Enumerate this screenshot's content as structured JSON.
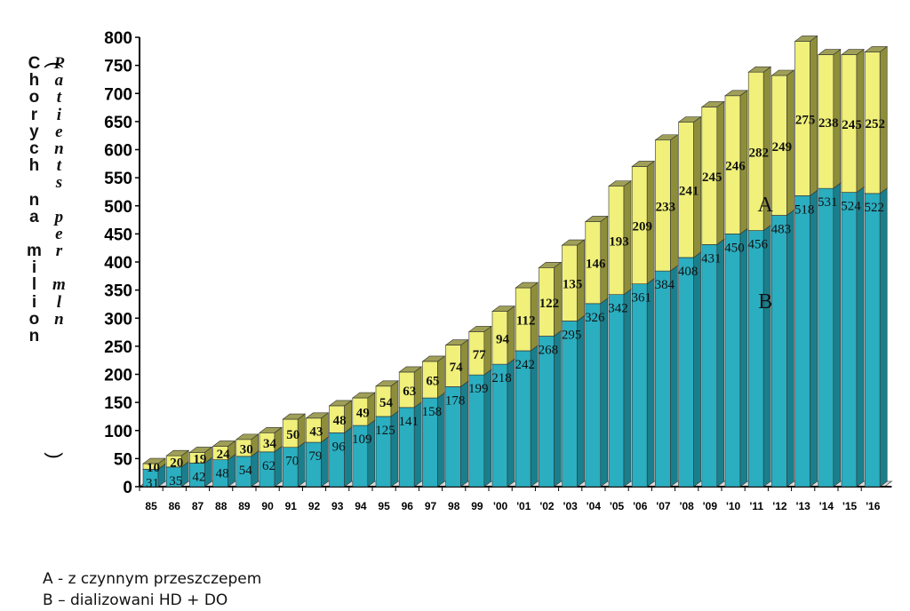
{
  "chart_data": {
    "type": "bar",
    "stacked": true,
    "three_d": true,
    "categories": [
      "85",
      "86",
      "87",
      "88",
      "89",
      "90",
      "91",
      "92",
      "93",
      "94",
      "95",
      "96",
      "97",
      "98",
      "99",
      "'00",
      "'01",
      "'02",
      "'03",
      "'04",
      "'05",
      "'06",
      "'07",
      "'08",
      "'09",
      "'10",
      "'11",
      "'12",
      "'13",
      "'14",
      "'15",
      "'16"
    ],
    "series": [
      {
        "name": "B",
        "color": "#2aaec0",
        "side_color": "#1a7f8c",
        "values": [
          31,
          35,
          42,
          48,
          54,
          62,
          70,
          79,
          96,
          109,
          125,
          141,
          158,
          178,
          199,
          218,
          242,
          268,
          295,
          326,
          342,
          361,
          384,
          408,
          431,
          450,
          456,
          483,
          518,
          531,
          524,
          522
        ]
      },
      {
        "name": "A",
        "color": "#f0f07a",
        "side_color": "#8e8e3a",
        "values": [
          10,
          20,
          19,
          24,
          30,
          34,
          50,
          43,
          48,
          49,
          54,
          63,
          65,
          74,
          77,
          94,
          112,
          122,
          135,
          146,
          193,
          209,
          233,
          241,
          245,
          246,
          282,
          249,
          275,
          238,
          245,
          252
        ]
      }
    ],
    "series_labels": [
      {
        "text": "A",
        "category": "'11",
        "value": 490
      },
      {
        "text": "B",
        "category": "'11",
        "value": 318
      }
    ],
    "ylim": [
      0,
      800
    ],
    "yticks": [
      0,
      50,
      100,
      150,
      200,
      250,
      300,
      350,
      400,
      450,
      500,
      550,
      600,
      650,
      700,
      750,
      800
    ],
    "grid": false,
    "ylabel_pl": "Chorych na milion",
    "ylabel_en": "Patients per mln",
    "ylabel_pl_chars": [
      "C",
      "h",
      "o",
      "r",
      "y",
      "c",
      "h",
      "",
      "n",
      "a",
      "",
      "m",
      "i",
      "l",
      "i",
      "o",
      "n"
    ],
    "ylabel_en_chars": [
      "P",
      "a",
      "t",
      "i",
      "e",
      "n",
      "t",
      "s",
      "",
      "p",
      "e",
      "r",
      "",
      "m",
      "l",
      "n"
    ],
    "legend": [
      {
        "text": "A - z  czynnym  przeszczepem"
      },
      {
        "text": "B – dializowani HD + DO"
      }
    ]
  }
}
